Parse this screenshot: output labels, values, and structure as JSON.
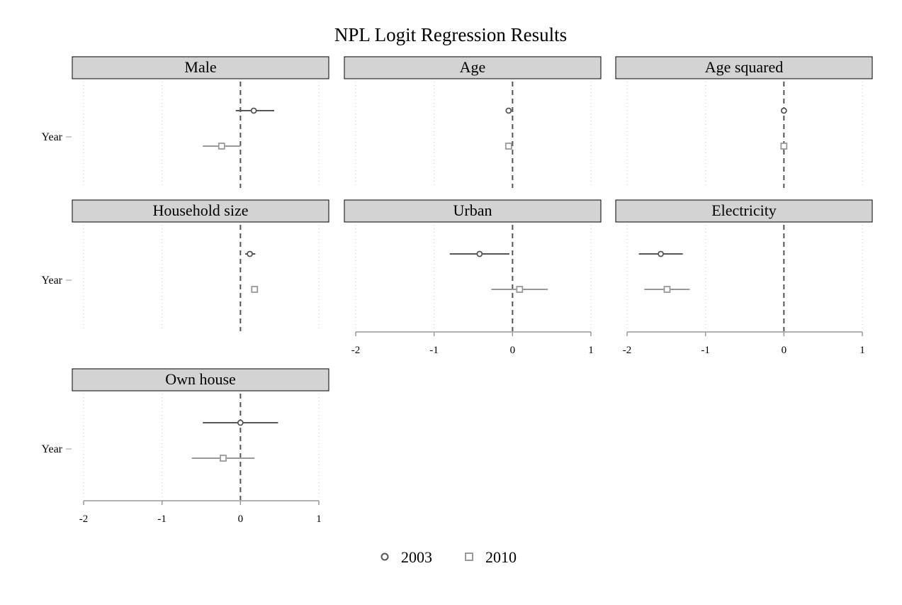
{
  "chart_data": {
    "type": "scatter",
    "title": "NPL Logit Regression Results",
    "y_label": "Year",
    "x_ticks": [
      -2,
      -1,
      0,
      1
    ],
    "xlim": [
      -2,
      1
    ],
    "reference_line": 0,
    "legend_position": "bottom-center",
    "series": [
      {
        "name": "2003",
        "marker": "circle",
        "color": "#555555"
      },
      {
        "name": "2010",
        "marker": "square",
        "color": "#999999"
      }
    ],
    "panels": [
      {
        "title": "Male",
        "points": [
          {
            "series": "2003",
            "estimate": 0.17,
            "ci": [
              -0.06,
              0.43
            ]
          },
          {
            "series": "2010",
            "estimate": -0.24,
            "ci": [
              -0.48,
              0.0
            ]
          }
        ]
      },
      {
        "title": "Age",
        "points": [
          {
            "series": "2003",
            "estimate": -0.05,
            "ci": [
              -0.06,
              -0.04
            ]
          },
          {
            "series": "2010",
            "estimate": -0.05,
            "ci": [
              -0.06,
              -0.04
            ]
          }
        ]
      },
      {
        "title": "Age squared",
        "points": [
          {
            "series": "2003",
            "estimate": 0.0,
            "ci": [
              0.0,
              0.0
            ]
          },
          {
            "series": "2010",
            "estimate": 0.0,
            "ci": [
              0.0,
              0.0
            ]
          }
        ]
      },
      {
        "title": "Household size",
        "points": [
          {
            "series": "2003",
            "estimate": 0.12,
            "ci": [
              0.06,
              0.19
            ]
          },
          {
            "series": "2010",
            "estimate": 0.18,
            "ci": [
              0.15,
              0.22
            ]
          }
        ]
      },
      {
        "title": "Urban",
        "points": [
          {
            "series": "2003",
            "estimate": -0.42,
            "ci": [
              -0.8,
              -0.04
            ]
          },
          {
            "series": "2010",
            "estimate": 0.09,
            "ci": [
              -0.27,
              0.45
            ]
          }
        ]
      },
      {
        "title": "Electricity",
        "points": [
          {
            "series": "2003",
            "estimate": -1.57,
            "ci": [
              -1.85,
              -1.29
            ]
          },
          {
            "series": "2010",
            "estimate": -1.49,
            "ci": [
              -1.78,
              -1.2
            ]
          }
        ]
      },
      {
        "title": "Own house",
        "points": [
          {
            "series": "2003",
            "estimate": 0.0,
            "ci": [
              -0.48,
              0.48
            ]
          },
          {
            "series": "2010",
            "estimate": -0.22,
            "ci": [
              -0.62,
              0.18
            ]
          }
        ]
      }
    ]
  }
}
